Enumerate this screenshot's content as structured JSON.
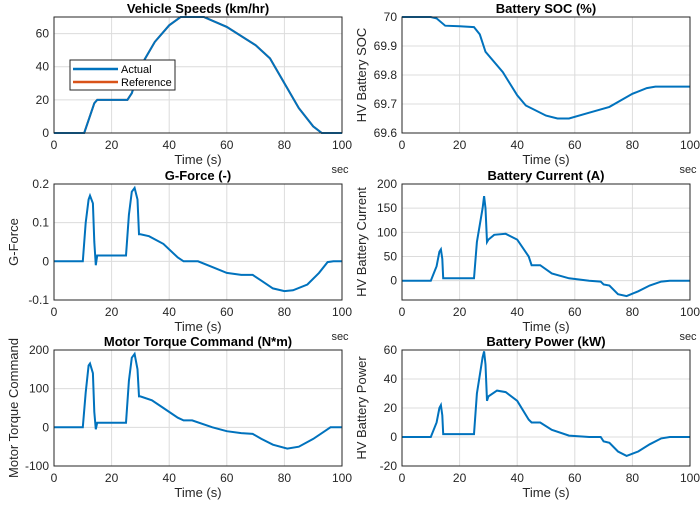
{
  "colors": {
    "actual": "#0072BD",
    "reference": "#D95319",
    "grid": "#dcdcdc",
    "axis": "#262626"
  },
  "chart_data": [
    {
      "type": "line",
      "title": "Vehicle Speeds (km/hr)",
      "xlabel": "Time (s)",
      "ylabel": "",
      "xunit": "sec",
      "xlim": [
        0,
        100
      ],
      "ylim": [
        0,
        70
      ],
      "xticks": [
        0,
        20,
        40,
        60,
        80,
        100
      ],
      "yticks": [
        0,
        20,
        40,
        60
      ],
      "grid": true,
      "legend": "center-left",
      "series": [
        {
          "name": "Actual",
          "color": "#0072BD",
          "points": [
            [
              0,
              0
            ],
            [
              10.5,
              0
            ],
            [
              14,
              18
            ],
            [
              15,
              20
            ],
            [
              25.5,
              20
            ],
            [
              27,
              24
            ],
            [
              30,
              40
            ],
            [
              35,
              55
            ],
            [
              40,
              65
            ],
            [
              44,
              70
            ],
            [
              52,
              70
            ],
            [
              60,
              64
            ],
            [
              70,
              53
            ],
            [
              75,
              45
            ],
            [
              80,
              30
            ],
            [
              85,
              15
            ],
            [
              90,
              4
            ],
            [
              93,
              0
            ],
            [
              100,
              0
            ]
          ]
        },
        {
          "name": "Reference",
          "color": "#D95319",
          "points": [
            [
              0,
              0
            ],
            [
              10.5,
              0
            ],
            [
              14,
              18
            ],
            [
              15,
              20
            ],
            [
              25.5,
              20
            ],
            [
              27,
              24
            ],
            [
              30,
              40
            ],
            [
              35,
              55
            ],
            [
              40,
              65
            ],
            [
              44,
              70
            ],
            [
              52,
              70
            ],
            [
              60,
              64
            ],
            [
              70,
              53
            ],
            [
              75,
              45
            ],
            [
              80,
              30
            ],
            [
              85,
              15
            ],
            [
              90,
              4
            ],
            [
              93,
              0
            ],
            [
              100,
              0
            ]
          ]
        }
      ]
    },
    {
      "type": "line",
      "title": "Battery SOC (%)",
      "xlabel": "Time (s)",
      "ylabel": "HV Battery SOC",
      "xunit": "sec",
      "xlim": [
        0,
        100
      ],
      "ylim": [
        69.6,
        70
      ],
      "xticks": [
        0,
        20,
        40,
        60,
        80,
        100
      ],
      "yticks": [
        69.6,
        69.7,
        69.8,
        69.9,
        70
      ],
      "grid": true,
      "series": [
        {
          "color": "#0072BD",
          "points": [
            [
              0,
              70
            ],
            [
              10,
              70
            ],
            [
              12,
              69.995
            ],
            [
              15,
              69.97
            ],
            [
              20,
              69.968
            ],
            [
              25,
              69.965
            ],
            [
              27,
              69.94
            ],
            [
              29,
              69.88
            ],
            [
              35,
              69.81
            ],
            [
              40,
              69.73
            ],
            [
              43,
              69.695
            ],
            [
              50,
              69.66
            ],
            [
              54,
              69.65
            ],
            [
              58,
              69.65
            ],
            [
              65,
              69.67
            ],
            [
              72,
              69.69
            ],
            [
              80,
              69.735
            ],
            [
              85,
              69.755
            ],
            [
              88,
              69.76
            ],
            [
              100,
              69.76
            ]
          ]
        }
      ]
    },
    {
      "type": "line",
      "title": "G-Force (-)",
      "xlabel": "Time (s)",
      "ylabel": "G-Force",
      "xunit": "sec",
      "xlim": [
        0,
        100
      ],
      "ylim": [
        -0.1,
        0.2
      ],
      "xticks": [
        0,
        20,
        40,
        60,
        80,
        100
      ],
      "yticks": [
        -0.1,
        0,
        0.1,
        0.2
      ],
      "grid": true,
      "series": [
        {
          "color": "#0072BD",
          "points": [
            [
              0,
              0
            ],
            [
              10,
              0
            ],
            [
              11,
              0.1
            ],
            [
              12,
              0.16
            ],
            [
              12.5,
              0.17
            ],
            [
              13.5,
              0.15
            ],
            [
              14,
              0.05
            ],
            [
              14.5,
              -0.01
            ],
            [
              15,
              0.015
            ],
            [
              25,
              0.015
            ],
            [
              26,
              0.12
            ],
            [
              27,
              0.18
            ],
            [
              28,
              0.19
            ],
            [
              29,
              0.16
            ],
            [
              29.5,
              0.07
            ],
            [
              30,
              0.07
            ],
            [
              33,
              0.065
            ],
            [
              38,
              0.045
            ],
            [
              43,
              0.01
            ],
            [
              45,
              0
            ],
            [
              50,
              0
            ],
            [
              55,
              -0.015
            ],
            [
              60,
              -0.03
            ],
            [
              65,
              -0.035
            ],
            [
              69,
              -0.035
            ],
            [
              72,
              -0.05
            ],
            [
              76,
              -0.07
            ],
            [
              80,
              -0.077
            ],
            [
              83,
              -0.075
            ],
            [
              88,
              -0.06
            ],
            [
              92,
              -0.03
            ],
            [
              95,
              -0.002
            ],
            [
              97,
              0
            ],
            [
              100,
              0
            ]
          ]
        }
      ]
    },
    {
      "type": "line",
      "title": "Battery Current (A)",
      "xlabel": "Time (s)",
      "ylabel": "HV Battery Current",
      "xunit": "sec",
      "xlim": [
        0,
        100
      ],
      "ylim": [
        -40,
        200
      ],
      "xticks": [
        0,
        20,
        40,
        60,
        80,
        100
      ],
      "yticks": [
        0,
        50,
        100,
        150,
        200
      ],
      "grid": true,
      "series": [
        {
          "color": "#0072BD",
          "points": [
            [
              0,
              0
            ],
            [
              10,
              0
            ],
            [
              12,
              30
            ],
            [
              13,
              60
            ],
            [
              13.5,
              65
            ],
            [
              14,
              45
            ],
            [
              14.3,
              5
            ],
            [
              15,
              5
            ],
            [
              25,
              5
            ],
            [
              26,
              80
            ],
            [
              28,
              150
            ],
            [
              28.5,
              175
            ],
            [
              29,
              150
            ],
            [
              29.5,
              80
            ],
            [
              30,
              85
            ],
            [
              32,
              95
            ],
            [
              36,
              97
            ],
            [
              40,
              85
            ],
            [
              44,
              50
            ],
            [
              45,
              32
            ],
            [
              48,
              32
            ],
            [
              52,
              15
            ],
            [
              58,
              5
            ],
            [
              65,
              0
            ],
            [
              69,
              -2
            ],
            [
              70,
              -8
            ],
            [
              72,
              -10
            ],
            [
              75,
              -28
            ],
            [
              78,
              -32
            ],
            [
              82,
              -22
            ],
            [
              86,
              -10
            ],
            [
              90,
              -2
            ],
            [
              93,
              0
            ],
            [
              100,
              0
            ]
          ]
        }
      ]
    },
    {
      "type": "line",
      "title": "Motor Torque Command (N*m)",
      "xlabel": "Time (s)",
      "ylabel": "Motor Torque Command",
      "xunit": "sec",
      "xlim": [
        0,
        100
      ],
      "ylim": [
        -100,
        200
      ],
      "xticks": [
        0,
        20,
        40,
        60,
        80,
        100
      ],
      "yticks": [
        -100,
        0,
        100,
        200
      ],
      "grid": true,
      "series": [
        {
          "color": "#0072BD",
          "points": [
            [
              0,
              0
            ],
            [
              10,
              0
            ],
            [
              11,
              90
            ],
            [
              12,
              160
            ],
            [
              12.5,
              165
            ],
            [
              13.5,
              140
            ],
            [
              14,
              40
            ],
            [
              14.5,
              -5
            ],
            [
              15,
              12
            ],
            [
              25,
              12
            ],
            [
              26,
              120
            ],
            [
              27,
              180
            ],
            [
              28,
              190
            ],
            [
              29,
              150
            ],
            [
              29.5,
              80
            ],
            [
              30,
              80
            ],
            [
              34,
              70
            ],
            [
              38,
              50
            ],
            [
              43,
              25
            ],
            [
              45,
              18
            ],
            [
              48,
              18
            ],
            [
              55,
              0
            ],
            [
              60,
              -10
            ],
            [
              65,
              -15
            ],
            [
              69,
              -17
            ],
            [
              72,
              -30
            ],
            [
              76,
              -45
            ],
            [
              81,
              -55
            ],
            [
              85,
              -50
            ],
            [
              90,
              -30
            ],
            [
              94,
              -10
            ],
            [
              96,
              0
            ],
            [
              100,
              0
            ]
          ]
        }
      ]
    },
    {
      "type": "line",
      "title": "Battery Power (kW)",
      "xlabel": "Time (s)",
      "ylabel": "HV Battery Power",
      "xunit": "sec",
      "xlim": [
        0,
        100
      ],
      "ylim": [
        -20,
        60
      ],
      "xticks": [
        0,
        20,
        40,
        60,
        80,
        100
      ],
      "yticks": [
        -20,
        0,
        20,
        40,
        60
      ],
      "grid": true,
      "series": [
        {
          "color": "#0072BD",
          "points": [
            [
              0,
              0
            ],
            [
              10,
              0
            ],
            [
              12,
              10
            ],
            [
              13,
              20
            ],
            [
              13.5,
              22
            ],
            [
              14,
              15
            ],
            [
              14.3,
              2
            ],
            [
              15,
              2
            ],
            [
              25,
              2
            ],
            [
              26,
              30
            ],
            [
              28,
              55
            ],
            [
              28.5,
              59
            ],
            [
              29,
              50
            ],
            [
              29.5,
              25
            ],
            [
              30,
              28
            ],
            [
              33,
              32
            ],
            [
              36,
              31
            ],
            [
              40,
              25
            ],
            [
              44,
              12
            ],
            [
              45,
              10
            ],
            [
              48,
              10
            ],
            [
              52,
              5
            ],
            [
              58,
              1
            ],
            [
              65,
              0
            ],
            [
              69,
              0
            ],
            [
              70,
              -3
            ],
            [
              72,
              -4
            ],
            [
              75,
              -10
            ],
            [
              78,
              -13
            ],
            [
              82,
              -10
            ],
            [
              86,
              -5
            ],
            [
              90,
              -1
            ],
            [
              93,
              0
            ],
            [
              100,
              0
            ]
          ]
        }
      ]
    }
  ]
}
